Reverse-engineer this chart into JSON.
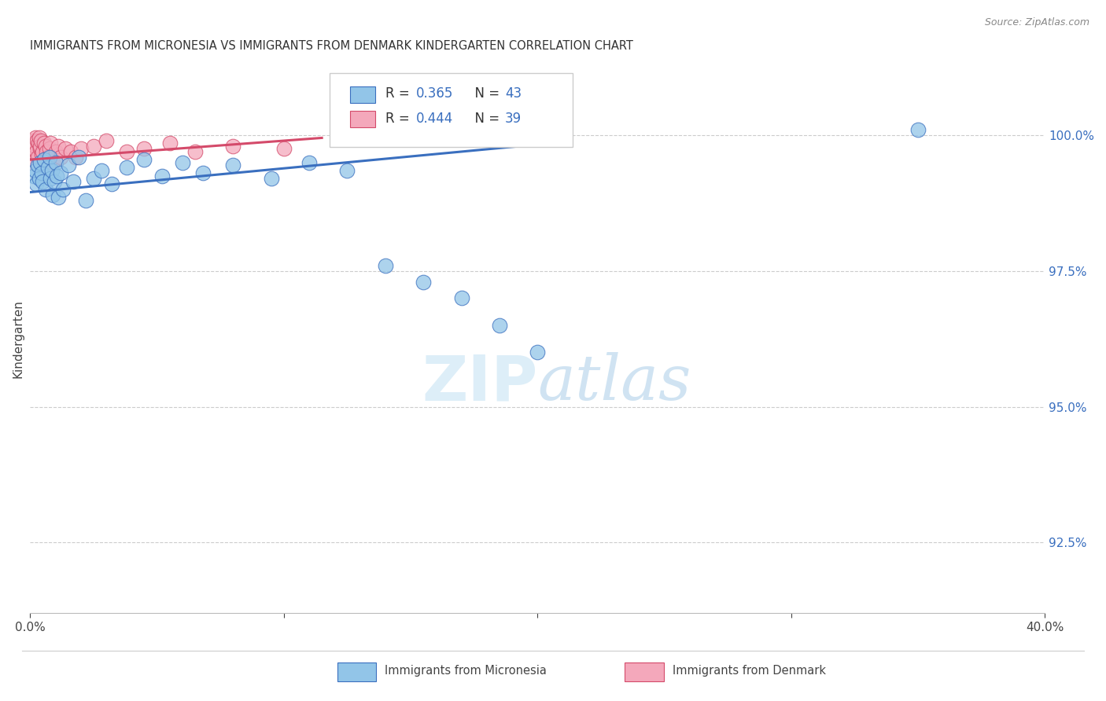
{
  "title": "IMMIGRANTS FROM MICRONESIA VS IMMIGRANTS FROM DENMARK KINDERGARTEN CORRELATION CHART",
  "source": "Source: ZipAtlas.com",
  "ylabel": "Kindergarten",
  "color_micronesia": "#92c5e8",
  "color_denmark": "#f4a8bb",
  "color_line_micronesia": "#3a6fbf",
  "color_line_denmark": "#d44a6a",
  "background_color": "#ffffff",
  "xlim": [
    0.0,
    40.0
  ],
  "ylim": [
    91.2,
    101.3
  ],
  "yticks": [
    92.5,
    95.0,
    97.5,
    100.0
  ],
  "xticks": [
    0,
    10,
    20,
    30,
    40
  ],
  "legend_line1": "R = 0.365   N = 43",
  "legend_line2": "R = 0.444   N = 39",
  "mic_x": [
    0.15,
    0.2,
    0.25,
    0.3,
    0.35,
    0.4,
    0.45,
    0.5,
    0.55,
    0.6,
    0.7,
    0.75,
    0.8,
    0.85,
    0.9,
    0.95,
    1.0,
    1.05,
    1.1,
    1.2,
    1.3,
    1.5,
    1.7,
    1.9,
    2.2,
    2.5,
    2.8,
    3.2,
    3.8,
    4.5,
    5.2,
    6.0,
    6.8,
    8.0,
    9.5,
    11.0,
    12.5,
    14.0,
    15.5,
    17.0,
    18.5,
    20.0,
    35.0
  ],
  "mic_y": [
    99.25,
    99.35,
    99.1,
    99.45,
    99.2,
    99.5,
    99.3,
    99.15,
    99.55,
    99.0,
    99.4,
    99.6,
    99.2,
    99.35,
    98.9,
    99.15,
    99.5,
    99.25,
    98.85,
    99.3,
    99.0,
    99.45,
    99.15,
    99.6,
    98.8,
    99.2,
    99.35,
    99.1,
    99.4,
    99.55,
    99.25,
    99.5,
    99.3,
    99.45,
    99.2,
    99.5,
    99.35,
    97.6,
    97.3,
    97.0,
    96.5,
    96.0,
    100.1
  ],
  "den_x": [
    0.05,
    0.1,
    0.12,
    0.15,
    0.18,
    0.2,
    0.22,
    0.25,
    0.28,
    0.3,
    0.32,
    0.35,
    0.38,
    0.4,
    0.42,
    0.45,
    0.5,
    0.55,
    0.6,
    0.65,
    0.7,
    0.75,
    0.8,
    0.9,
    1.0,
    1.1,
    1.2,
    1.4,
    1.6,
    1.8,
    2.0,
    2.5,
    3.0,
    3.8,
    4.5,
    5.5,
    6.5,
    8.0,
    10.0
  ],
  "den_y": [
    99.5,
    99.7,
    99.9,
    99.85,
    99.75,
    99.95,
    99.8,
    99.7,
    99.9,
    99.6,
    99.85,
    99.95,
    99.75,
    99.8,
    99.9,
    99.65,
    99.7,
    99.85,
    99.8,
    99.7,
    99.6,
    99.75,
    99.85,
    99.5,
    99.7,
    99.8,
    99.6,
    99.75,
    99.7,
    99.6,
    99.75,
    99.8,
    99.9,
    99.7,
    99.75,
    99.85,
    99.7,
    99.8,
    99.75
  ],
  "mic_trend_x": [
    0.0,
    20.5
  ],
  "mic_trend_y": [
    98.95,
    99.85
  ],
  "den_trend_x": [
    0.0,
    11.5
  ],
  "den_trend_y": [
    99.55,
    99.95
  ]
}
